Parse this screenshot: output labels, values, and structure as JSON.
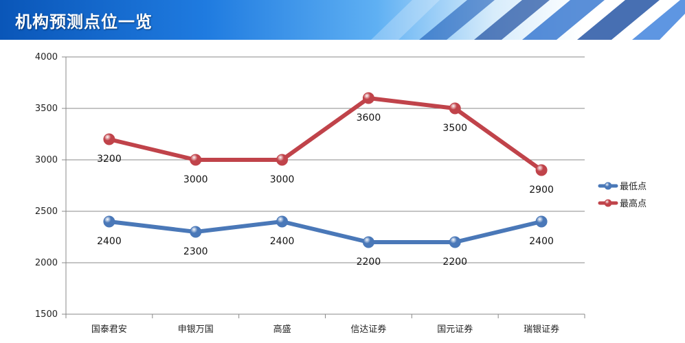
{
  "header": {
    "title": "机构预测点位一览"
  },
  "colors": {
    "low": "#4a78b8",
    "high": "#c0434a",
    "grid": "#888888"
  },
  "chart_data": {
    "type": "line",
    "title": "",
    "categories": [
      "国泰君安",
      "申银万国",
      "高盛",
      "信达证券",
      "国元证券",
      "瑞银证券"
    ],
    "series": [
      {
        "name": "最低点",
        "values": [
          2400,
          2300,
          2400,
          2200,
          2200,
          2400
        ],
        "color": "#4a78b8"
      },
      {
        "name": "最高点",
        "values": [
          3200,
          3000,
          3000,
          3600,
          3500,
          2900
        ],
        "color": "#c0434a"
      }
    ],
    "ylim": [
      1500,
      4000
    ],
    "yticks": [
      1500,
      2000,
      2500,
      3000,
      3500,
      4000
    ],
    "grid": true,
    "legend": "right",
    "xlabel": "",
    "ylabel": ""
  }
}
